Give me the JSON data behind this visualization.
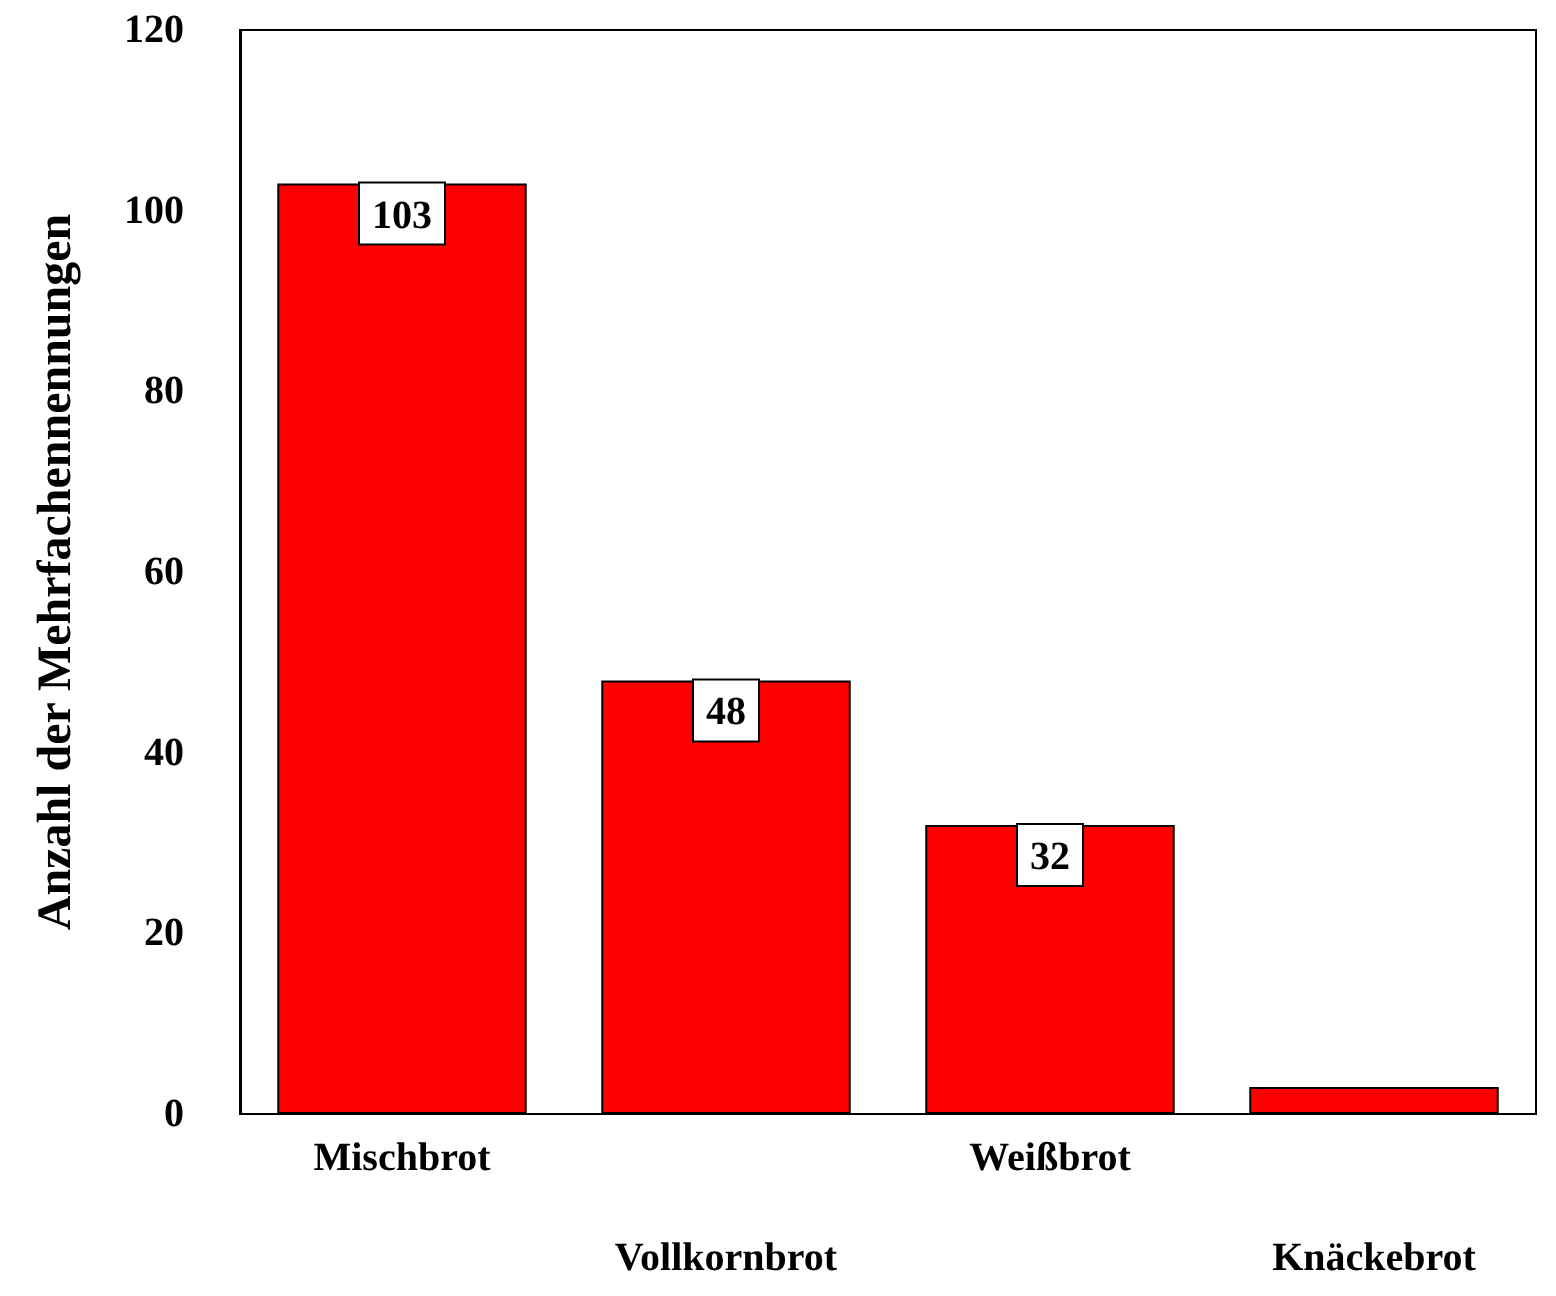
{
  "chart_data": {
    "type": "bar",
    "ylabel": "Anzahl der Mehrfachennennungen",
    "categories": [
      "Mischbrot",
      "Vollkornbrot",
      "Weißbrot",
      "Knäckebrot"
    ],
    "values": [
      103,
      48,
      32,
      3
    ],
    "color": "#ff0000",
    "value_labels": [
      "103",
      "48",
      "32",
      null
    ],
    "ylim": [
      0,
      120
    ],
    "yticks": [
      0,
      20,
      40,
      60,
      80,
      100,
      120
    ],
    "grid": false
  }
}
